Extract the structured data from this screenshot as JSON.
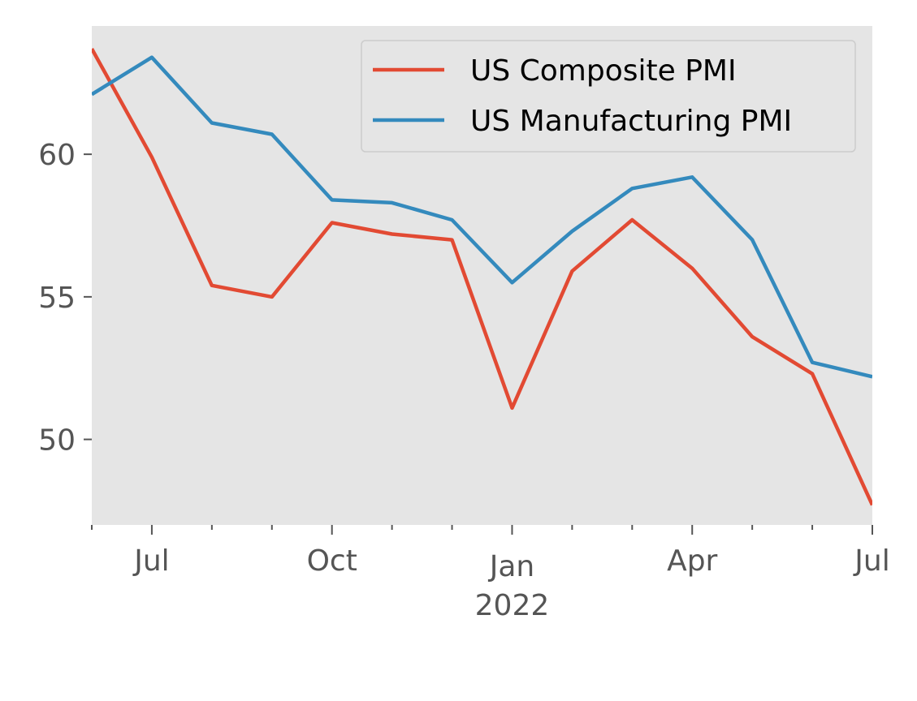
{
  "chart_data": {
    "type": "line",
    "style": "ggplot",
    "background_color": "#e5e5e5",
    "grid": false,
    "legend_position": "top-right",
    "x": [
      "2021-06",
      "2021-07",
      "2021-08",
      "2021-09",
      "2021-10",
      "2021-11",
      "2021-12",
      "2022-01",
      "2022-02",
      "2022-03",
      "2022-04",
      "2022-05",
      "2022-06",
      "2022-07"
    ],
    "xlim": [
      "2021-06",
      "2022-07"
    ],
    "ylim": [
      47,
      64.5
    ],
    "y_ticks": [
      {
        "value": 50,
        "label": "50"
      },
      {
        "value": 55,
        "label": "55"
      },
      {
        "value": 60,
        "label": "60"
      }
    ],
    "x_major_ticks": [
      {
        "x": "2021-07",
        "label": "Jul",
        "sublabel": ""
      },
      {
        "x": "2021-10",
        "label": "Oct",
        "sublabel": ""
      },
      {
        "x": "2022-01",
        "label": "Jan",
        "sublabel": "2022"
      },
      {
        "x": "2022-04",
        "label": "Apr",
        "sublabel": ""
      },
      {
        "x": "2022-07",
        "label": "Jul",
        "sublabel": ""
      }
    ],
    "x_minor_ticks": [
      "2021-06",
      "2021-08",
      "2021-09",
      "2021-11",
      "2021-12",
      "2022-02",
      "2022-03",
      "2022-05",
      "2022-06"
    ],
    "series": [
      {
        "name": "US Composite PMI",
        "color": "#e24a33",
        "values": [
          63.7,
          59.9,
          55.4,
          55.0,
          57.6,
          57.2,
          57.0,
          51.1,
          55.9,
          57.7,
          56.0,
          53.6,
          52.3,
          47.7
        ]
      },
      {
        "name": "US Manufacturing PMI",
        "color": "#348abd",
        "values": [
          62.1,
          63.4,
          61.1,
          60.7,
          58.4,
          58.3,
          57.7,
          55.5,
          57.3,
          58.8,
          59.2,
          57.0,
          52.7,
          52.2
        ]
      }
    ]
  }
}
